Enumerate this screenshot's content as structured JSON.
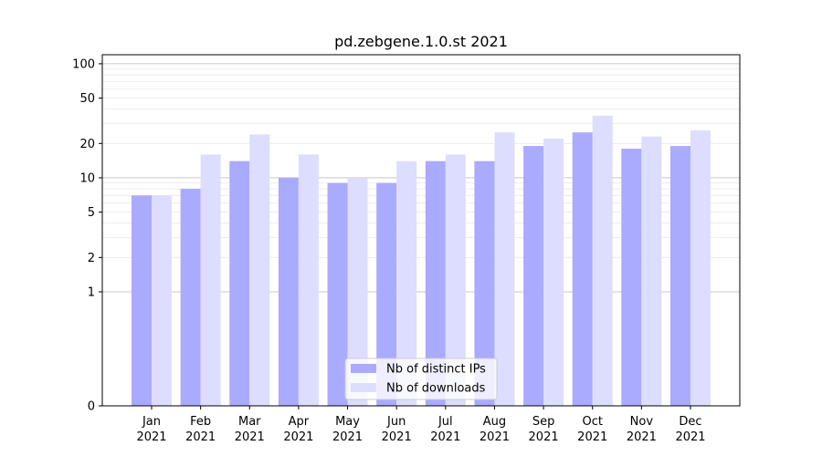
{
  "chart_data": {
    "type": "bar",
    "title": "pd.zebgene.1.0.st 2021",
    "xlabel": "",
    "ylabel": "",
    "yscale": "symlog",
    "ylim": [
      0,
      120
    ],
    "y_ticks": [
      0,
      1,
      2,
      5,
      10,
      20,
      50,
      100
    ],
    "y_tick_labels": [
      "0",
      "1",
      "2",
      "5",
      "10",
      "20",
      "50",
      "100"
    ],
    "grid": "horizontal",
    "legend_position": "bottom-center",
    "categories": [
      "Jan\n2021",
      "Feb\n2021",
      "Mar\n2021",
      "Apr\n2021",
      "May\n2021",
      "Jun\n2021",
      "Jul\n2021",
      "Aug\n2021",
      "Sep\n2021",
      "Oct\n2021",
      "Nov\n2021",
      "Dec\n2021"
    ],
    "category_month": [
      "Jan",
      "Feb",
      "Mar",
      "Apr",
      "May",
      "Jun",
      "Jul",
      "Aug",
      "Sep",
      "Oct",
      "Nov",
      "Dec"
    ],
    "category_year": [
      "2021",
      "2021",
      "2021",
      "2021",
      "2021",
      "2021",
      "2021",
      "2021",
      "2021",
      "2021",
      "2021",
      "2021"
    ],
    "series": [
      {
        "name": "Nb of distinct IPs",
        "color": "#aaaaff",
        "values": [
          7,
          8,
          14,
          10,
          9,
          9,
          14,
          14,
          19,
          25,
          18,
          19
        ]
      },
      {
        "name": "Nb of downloads",
        "color": "#ddddff",
        "values": [
          7,
          16,
          24,
          16,
          10,
          14,
          16,
          25,
          22,
          35,
          23,
          26
        ]
      }
    ]
  }
}
